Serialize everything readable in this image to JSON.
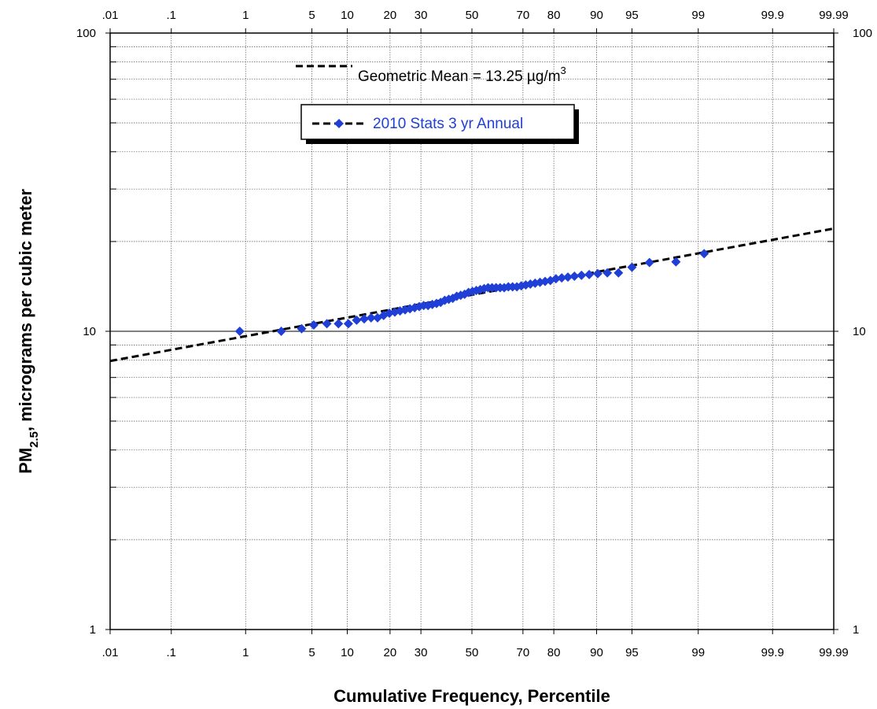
{
  "chart_data": {
    "type": "scatter",
    "x_scale": "normal-probability",
    "y_scale": "log",
    "xlabel": "Cumulative Frequency, Percentile",
    "ylabel": {
      "prefix": "PM",
      "subscript": "2.5",
      "suffix": ", micrograms per cubic meter"
    },
    "x_ticks": [
      {
        "value": 0.01,
        "label": ".01"
      },
      {
        "value": 0.1,
        "label": ".1"
      },
      {
        "value": 1,
        "label": "1"
      },
      {
        "value": 5,
        "label": "5"
      },
      {
        "value": 10,
        "label": "10"
      },
      {
        "value": 20,
        "label": "20"
      },
      {
        "value": 30,
        "label": "30"
      },
      {
        "value": 50,
        "label": "50"
      },
      {
        "value": 70,
        "label": "70"
      },
      {
        "value": 80,
        "label": "80"
      },
      {
        "value": 90,
        "label": "90"
      },
      {
        "value": 95,
        "label": "95"
      },
      {
        "value": 99,
        "label": "99"
      },
      {
        "value": 99.9,
        "label": "99.9"
      },
      {
        "value": 99.99,
        "label": "99.99"
      }
    ],
    "x_range": [
      0.01,
      99.99
    ],
    "y_ticks": [
      {
        "value": 1,
        "label": "1"
      },
      {
        "value": 10,
        "label": "10"
      },
      {
        "value": 100,
        "label": "100"
      }
    ],
    "y_range": [
      1,
      100
    ],
    "grid": true,
    "annotation": {
      "text": "Geometric Mean = 13.25 µg/m",
      "superscript": "3"
    },
    "fit_line": {
      "style": "dashed",
      "color": "#000000",
      "points": [
        [
          0.01,
          7.95
        ],
        [
          99.99,
          22.1
        ]
      ]
    },
    "series": [
      {
        "name": "2010 Stats 3 yr Annual",
        "color": "#1f3fd6",
        "marker": "diamond",
        "points": [
          [
            0.85,
            10.0
          ],
          [
            2.5,
            10.0
          ],
          [
            4.0,
            10.2
          ],
          [
            5.2,
            10.5
          ],
          [
            6.8,
            10.6
          ],
          [
            8.5,
            10.6
          ],
          [
            10.2,
            10.6
          ],
          [
            11.8,
            10.9
          ],
          [
            13.4,
            11.0
          ],
          [
            15.0,
            11.1
          ],
          [
            16.6,
            11.1
          ],
          [
            18.2,
            11.3
          ],
          [
            19.8,
            11.5
          ],
          [
            21.4,
            11.6
          ],
          [
            23.0,
            11.7
          ],
          [
            24.6,
            11.8
          ],
          [
            26.2,
            11.9
          ],
          [
            27.8,
            12.0
          ],
          [
            29.4,
            12.1
          ],
          [
            31.0,
            12.2
          ],
          [
            32.6,
            12.2
          ],
          [
            34.2,
            12.3
          ],
          [
            35.8,
            12.4
          ],
          [
            37.4,
            12.5
          ],
          [
            39.0,
            12.7
          ],
          [
            40.6,
            12.8
          ],
          [
            42.2,
            12.9
          ],
          [
            43.8,
            13.1
          ],
          [
            45.4,
            13.2
          ],
          [
            47.0,
            13.3
          ],
          [
            48.6,
            13.5
          ],
          [
            50.2,
            13.6
          ],
          [
            51.8,
            13.7
          ],
          [
            53.4,
            13.8
          ],
          [
            55.0,
            13.9
          ],
          [
            56.6,
            14.0
          ],
          [
            58.2,
            14.0
          ],
          [
            59.8,
            14.0
          ],
          [
            61.4,
            14.0
          ],
          [
            63.0,
            14.0
          ],
          [
            64.6,
            14.1
          ],
          [
            66.2,
            14.1
          ],
          [
            67.8,
            14.1
          ],
          [
            69.4,
            14.2
          ],
          [
            71.0,
            14.3
          ],
          [
            72.6,
            14.4
          ],
          [
            74.2,
            14.5
          ],
          [
            75.8,
            14.6
          ],
          [
            77.4,
            14.7
          ],
          [
            79.0,
            14.8
          ],
          [
            80.6,
            15.0
          ],
          [
            82.2,
            15.1
          ],
          [
            83.8,
            15.2
          ],
          [
            85.4,
            15.3
          ],
          [
            87.0,
            15.4
          ],
          [
            88.6,
            15.5
          ],
          [
            90.2,
            15.6
          ],
          [
            91.8,
            15.7
          ],
          [
            93.4,
            15.7
          ],
          [
            95.0,
            16.4
          ],
          [
            96.6,
            17.0
          ],
          [
            98.2,
            17.1
          ],
          [
            99.15,
            18.2
          ]
        ]
      }
    ]
  }
}
